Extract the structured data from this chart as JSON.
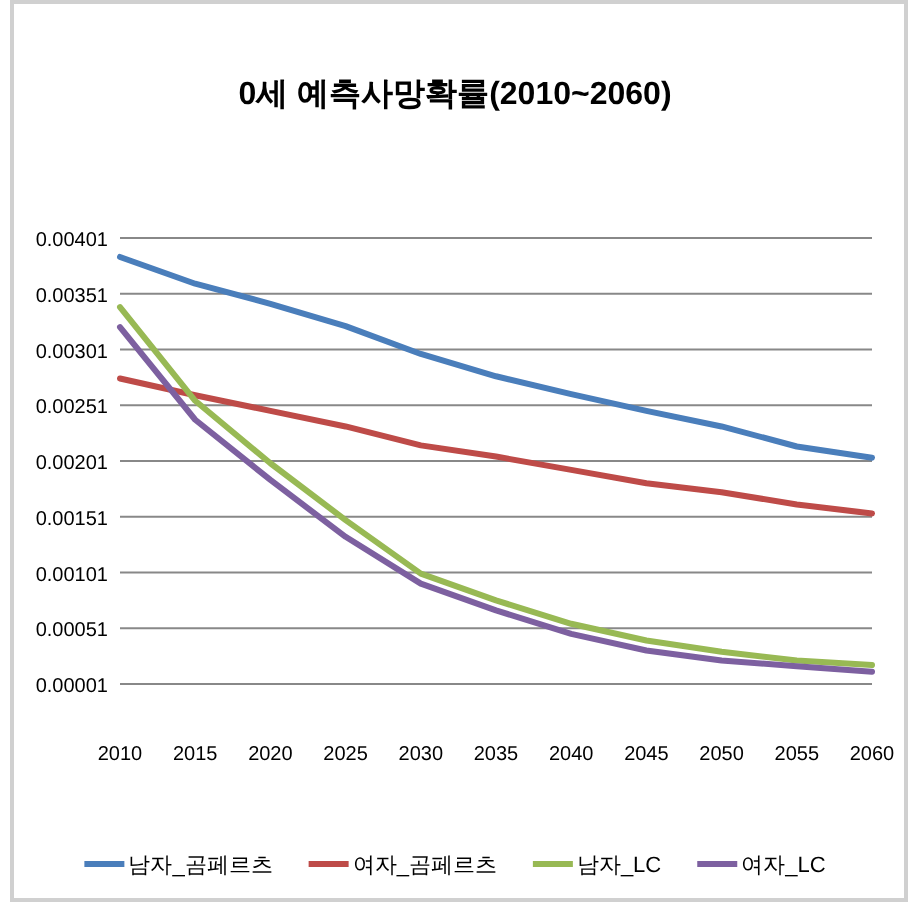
{
  "chart_data": {
    "type": "line",
    "title": "0세 예측사망확률(2010~2060)",
    "x": [
      2010,
      2015,
      2020,
      2025,
      2030,
      2035,
      2040,
      2045,
      2050,
      2055,
      2060
    ],
    "series": [
      {
        "name": "남자_곰페르츠",
        "color": "#4a7ebb",
        "values": [
          0.00384,
          0.0036,
          0.00342,
          0.00322,
          0.00297,
          0.00277,
          0.00261,
          0.00246,
          0.00232,
          0.00214,
          0.00204
        ]
      },
      {
        "name": "여자_곰페르츠",
        "color": "#be4b48",
        "values": [
          0.00275,
          0.0026,
          0.00246,
          0.00232,
          0.00215,
          0.00205,
          0.00193,
          0.00181,
          0.00173,
          0.00162,
          0.00154
        ]
      },
      {
        "name": "남자_LC",
        "color": "#98b954",
        "values": [
          0.00339,
          0.00255,
          0.00199,
          0.00148,
          0.001,
          0.00076,
          0.00055,
          0.0004,
          0.0003,
          0.00022,
          0.00018
        ]
      },
      {
        "name": "여자_LC",
        "color": "#7d60a0",
        "values": [
          0.00321,
          0.00238,
          0.00184,
          0.00133,
          0.00091,
          0.00067,
          0.00046,
          0.00031,
          0.00022,
          0.00017,
          0.00012
        ]
      }
    ],
    "xlim": [
      2010,
      2060
    ],
    "xticks": [
      2010,
      2015,
      2020,
      2025,
      2030,
      2035,
      2040,
      2045,
      2050,
      2055,
      2060
    ],
    "ylim": [
      1e-05,
      0.00401
    ],
    "yticks": [
      {
        "value": 1e-05,
        "label": "0.00001"
      },
      0.00051,
      0.00101,
      0.00151,
      0.00201,
      0.00251,
      0.00301,
      0.00351,
      0.00401
    ],
    "grid": "y",
    "legend": "bottom",
    "marker": "none",
    "line_style": "solid"
  }
}
